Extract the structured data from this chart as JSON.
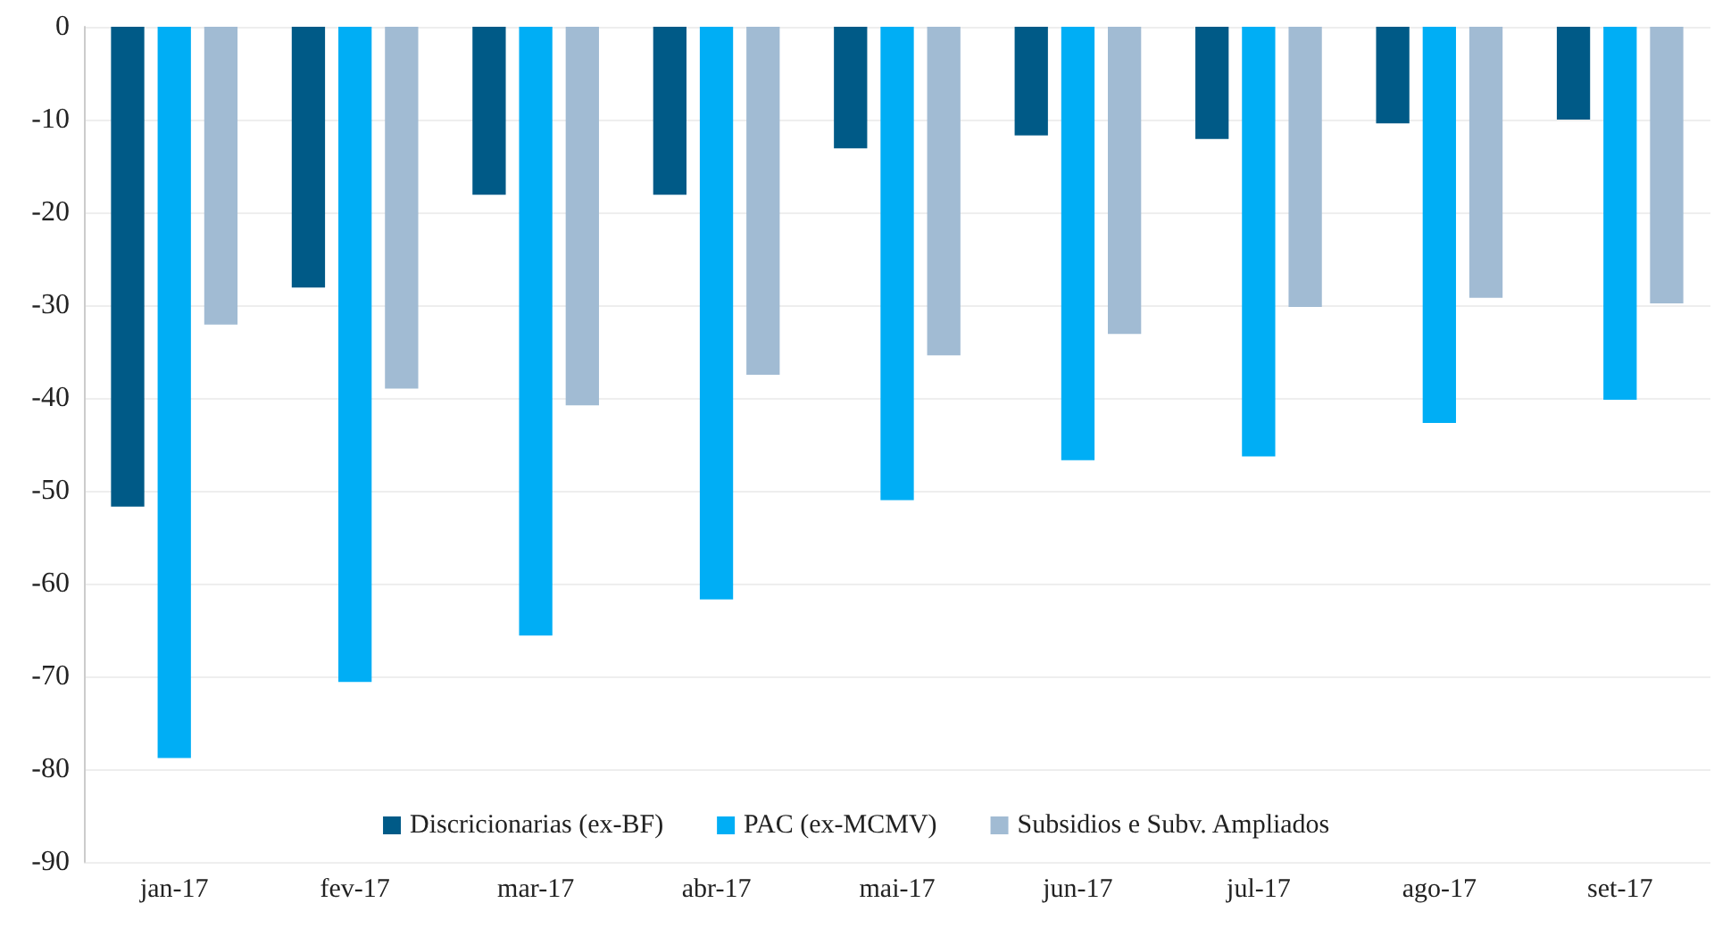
{
  "chart_data": {
    "type": "bar",
    "categories": [
      "jan-17",
      "fev-17",
      "mar-17",
      "abr-17",
      "mai-17",
      "jun-17",
      "jul-17",
      "ago-17",
      "set-17"
    ],
    "series": [
      {
        "name": "Discricionarias (ex-BF)",
        "color": "#005a87",
        "values": [
          -51.7,
          -28.1,
          -18.1,
          -18.1,
          -13.1,
          -11.7,
          -12.1,
          -10.4,
          -10.0
        ]
      },
      {
        "name": "PAC (ex-MCMV)",
        "color": "#00aef5",
        "values": [
          -78.8,
          -70.6,
          -65.6,
          -61.7,
          -51.0,
          -46.7,
          -46.3,
          -42.7,
          -40.2
        ]
      },
      {
        "name": "Subsidios e Subv. Ampliados",
        "color": "#a1bbd3",
        "values": [
          -32.1,
          -39.0,
          -40.8,
          -37.5,
          -35.4,
          -33.1,
          -30.2,
          -29.2,
          -29.8
        ]
      }
    ],
    "ylim": [
      -90,
      0
    ],
    "yticks": [
      -90,
      -80,
      -70,
      -60,
      -50,
      -40,
      -30,
      -20,
      -10,
      0
    ],
    "grid": "y",
    "legend": "bottom"
  }
}
